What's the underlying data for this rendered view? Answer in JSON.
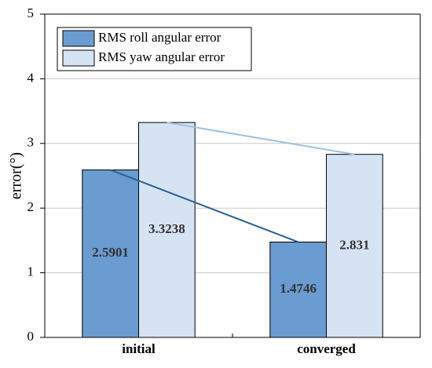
{
  "chart_data": {
    "type": "bar",
    "y_label": "error(°)",
    "categories": [
      "initial",
      "converged"
    ],
    "series": [
      {
        "name": "RMS roll angular error",
        "color": "#6a9bd1",
        "line_color": "#2d5f90",
        "values": [
          2.5901,
          1.4746
        ]
      },
      {
        "name": "RMS yaw angular error",
        "color": "#d6e3f3",
        "line_color": "#9fc2e0",
        "values": [
          3.3238,
          2.831
        ]
      }
    ],
    "ylim": [
      0,
      5
    ],
    "yticks": [
      0,
      1,
      2,
      3,
      4,
      5
    ],
    "grid": true,
    "legend": "upper-left"
  }
}
